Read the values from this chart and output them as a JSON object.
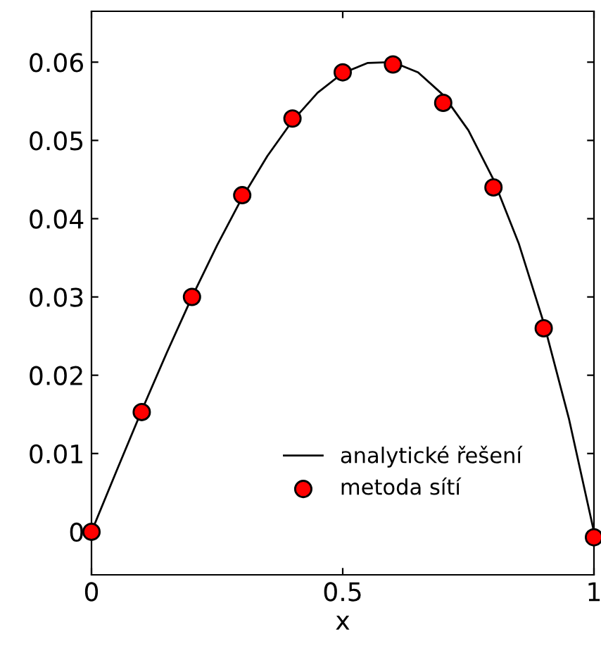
{
  "chart_data": {
    "type": "line",
    "xlabel": "x",
    "xlim": [
      0,
      1
    ],
    "xticks": [
      0,
      {
        "value": 0.5,
        "label": "0.5"
      },
      1
    ],
    "ylim": [
      -0.0055,
      0.0665
    ],
    "yticks": [
      0,
      0.01,
      0.02,
      0.03,
      0.04,
      0.05,
      0.06
    ],
    "grid": false,
    "legend": "bottom",
    "series": [
      {
        "name": "analytické řešení",
        "color": "#000000",
        "marker": "none",
        "line_style": "solid",
        "x": [
          0,
          0.05,
          0.1,
          0.15,
          0.2,
          0.25,
          0.3,
          0.35,
          0.4,
          0.45,
          0.5,
          0.55,
          0.6,
          0.65,
          0.7,
          0.75,
          0.8,
          0.85,
          0.9,
          0.95,
          1
        ],
        "values": [
          0,
          0.0078,
          0.0155,
          0.0229,
          0.03,
          0.0366,
          0.0427,
          0.048,
          0.0525,
          0.0561,
          0.0586,
          0.0599,
          0.06,
          0.0587,
          0.0558,
          0.0513,
          0.045,
          0.0369,
          0.0267,
          0.0145,
          0
        ]
      },
      {
        "name": "metoda sítí",
        "type": "scatter",
        "color": "#ff0000",
        "marker": "circle",
        "x": [
          0,
          0.1,
          0.2,
          0.3,
          0.4,
          0.5,
          0.6,
          0.7,
          0.8,
          0.9,
          1
        ],
        "values": [
          0,
          0.0153,
          0.03,
          0.043,
          0.0528,
          0.0587,
          0.0597,
          0.0548,
          0.044,
          0.026,
          -0.0007
        ]
      }
    ]
  }
}
